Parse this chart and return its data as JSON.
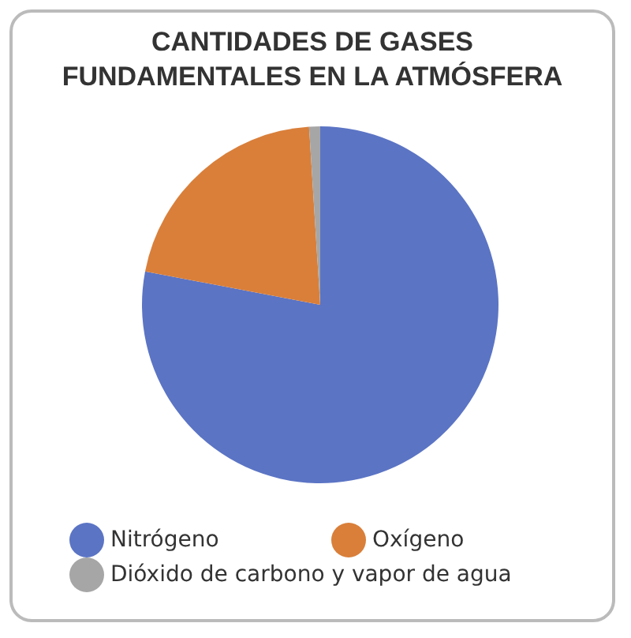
{
  "chart_data": {
    "type": "pie",
    "title": "CANTIDADES DE GASES FUNDAMENTALES EN LA ATMÓSFERA",
    "categories": [
      "Nitrógeno",
      "Oxígeno",
      "Dióxido de carbono y vapor de agua"
    ],
    "values": [
      78,
      21,
      1
    ],
    "colors": [
      "#5b74c4",
      "#d97f3a",
      "#a6a6a6"
    ],
    "legend": "bottom"
  }
}
